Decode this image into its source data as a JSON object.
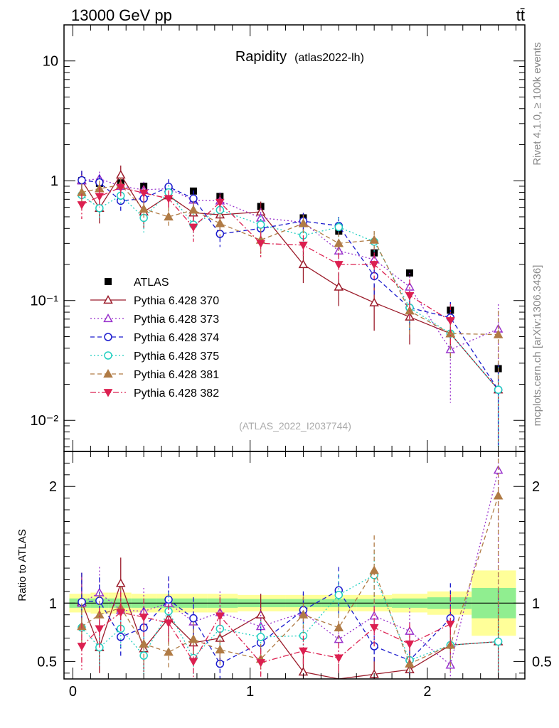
{
  "header": {
    "energy_label": "13000 GeV pp",
    "process_label": "tt̄"
  },
  "side_labels": {
    "rivet": "Rivet 4.1.0, ≥ 100k events",
    "mcplots": "mcplots.cern.ch [arXiv:1306.3436]"
  },
  "chart_data": [
    {
      "type": "scatter",
      "title": "Rapidity",
      "subtitle": "(atlas2022-lh)",
      "watermark": "(ATLAS_2022_I2037744)",
      "xlabel": "",
      "ylabel": "",
      "yscale": "log",
      "xlim": [
        -0.05,
        2.55
      ],
      "ylim": [
        0.0055,
        20
      ],
      "y_ticks": [
        {
          "v": 10,
          "label": "10"
        },
        {
          "v": 1,
          "label": "1"
        },
        {
          "v": 0.1,
          "label": "10⁻¹"
        },
        {
          "v": 0.01,
          "label": "10⁻²"
        }
      ],
      "x": [
        0.05,
        0.15,
        0.27,
        0.4,
        0.54,
        0.68,
        0.83,
        1.06,
        1.3,
        1.5,
        1.7,
        1.9,
        2.13,
        2.4
      ],
      "series": [
        {
          "name": "ATLAS",
          "color": "#000000",
          "marker": "square-filled",
          "dash": "none",
          "values": [
            1.0,
            0.95,
            0.96,
            0.9,
            0.86,
            0.82,
            0.74,
            0.61,
            0.49,
            0.38,
            0.25,
            0.17,
            0.083,
            0.027
          ]
        },
        {
          "name": "Pythia 6.428 370",
          "color": "#9b1b2a",
          "marker": "triangle-up-open",
          "dash": "solid",
          "values": [
            1.01,
            0.59,
            1.12,
            0.55,
            0.75,
            0.54,
            0.52,
            0.55,
            0.2,
            0.13,
            0.096,
            0.073,
            0.053,
            0.018
          ],
          "errors": [
            0.2,
            0.15,
            0.22,
            0.15,
            0.15,
            0.13,
            0.13,
            0.12,
            0.06,
            0.04,
            0.04,
            0.03,
            0.02,
            0.012
          ]
        },
        {
          "name": "Pythia 6.428 373",
          "color": "#9932cc",
          "marker": "triangle-up-open",
          "dash": "dotted",
          "values": [
            1.0,
            1.04,
            0.9,
            0.84,
            0.86,
            0.69,
            0.68,
            0.49,
            0.45,
            0.26,
            0.22,
            0.13,
            0.039,
            0.058
          ],
          "errors": [
            0.15,
            0.15,
            0.15,
            0.14,
            0.14,
            0.12,
            0.12,
            0.1,
            0.08,
            0.06,
            0.05,
            0.04,
            0.025,
            0.035
          ]
        },
        {
          "name": "Pythia 6.428 374",
          "color": "#1a1acd",
          "marker": "circle-open",
          "dash": "dashed",
          "values": [
            1.01,
            0.97,
            0.68,
            0.71,
            0.89,
            0.71,
            0.36,
            0.4,
            0.46,
            0.42,
            0.16,
            0.087,
            0.072,
            0.018
          ],
          "errors": [
            0.2,
            0.15,
            0.12,
            0.12,
            0.14,
            0.12,
            0.08,
            0.08,
            0.08,
            0.08,
            0.05,
            0.03,
            0.025,
            0.012
          ]
        },
        {
          "name": "Pythia 6.428 375",
          "color": "#20cfc0",
          "marker": "circle-open",
          "dash": "dotted",
          "values": [
            0.76,
            0.59,
            0.75,
            0.49,
            0.8,
            0.43,
            0.57,
            0.43,
            0.35,
            0.41,
            0.31,
            0.087,
            0.053,
            0.018
          ],
          "errors": [
            0.15,
            0.12,
            0.12,
            0.12,
            0.12,
            0.1,
            0.1,
            0.08,
            0.07,
            0.08,
            0.06,
            0.03,
            0.02,
            0.012
          ]
        },
        {
          "name": "Pythia 6.428 381",
          "color": "#b07b45",
          "marker": "triangle-up-filled",
          "dash": "dashed",
          "values": [
            0.8,
            0.86,
            0.92,
            0.58,
            0.5,
            0.57,
            0.44,
            0.32,
            0.44,
            0.3,
            0.32,
            0.082,
            0.053,
            0.052
          ],
          "errors": [
            0.15,
            0.14,
            0.14,
            0.12,
            0.1,
            0.11,
            0.1,
            0.08,
            0.08,
            0.07,
            0.06,
            0.03,
            0.02,
            0.03
          ]
        },
        {
          "name": "Pythia 6.428 382",
          "color": "#dc2050",
          "marker": "triangle-down-filled",
          "dash": "dashdot",
          "values": [
            0.63,
            0.74,
            0.88,
            0.79,
            0.71,
            0.41,
            0.66,
            0.3,
            0.29,
            0.2,
            0.2,
            0.11,
            0.068,
            null
          ],
          "errors": [
            0.15,
            0.14,
            0.14,
            0.12,
            0.12,
            0.1,
            0.11,
            0.07,
            0.06,
            0.05,
            0.05,
            0.04,
            0.025,
            null
          ]
        }
      ]
    },
    {
      "type": "scatter",
      "title": "",
      "xlabel": "",
      "ylabel": "Ratio to ATLAS",
      "yscale": "linear",
      "xlim": [
        -0.05,
        2.55
      ],
      "ylim": [
        0.35,
        2.3
      ],
      "y_ticks": [
        {
          "v": 2,
          "label": "2"
        },
        {
          "v": 1,
          "label": "1"
        },
        {
          "v": 0.5,
          "label": "0.5"
        }
      ],
      "x_ticks": [
        {
          "v": 0,
          "label": "0"
        },
        {
          "v": 1,
          "label": "1"
        },
        {
          "v": 2,
          "label": "2"
        }
      ],
      "x": [
        0.05,
        0.15,
        0.27,
        0.4,
        0.54,
        0.68,
        0.83,
        1.06,
        1.3,
        1.5,
        1.7,
        1.9,
        2.13,
        2.4
      ],
      "bins": [
        [
          -0.02,
          0.1
        ],
        [
          0.1,
          0.2
        ],
        [
          0.2,
          0.33
        ],
        [
          0.33,
          0.47
        ],
        [
          0.47,
          0.61
        ],
        [
          0.61,
          0.76
        ],
        [
          0.76,
          0.93
        ],
        [
          0.93,
          1.2
        ],
        [
          1.2,
          1.4
        ],
        [
          1.4,
          1.6
        ],
        [
          1.6,
          1.8
        ],
        [
          1.8,
          2.0
        ],
        [
          2.0,
          2.25
        ],
        [
          2.25,
          2.5
        ]
      ],
      "bands": {
        "inner": [
          [
            0.96,
            1.04
          ],
          [
            0.96,
            1.04
          ],
          [
            0.96,
            1.04
          ],
          [
            0.96,
            1.04
          ],
          [
            0.96,
            1.04
          ],
          [
            0.96,
            1.04
          ],
          [
            0.96,
            1.04
          ],
          [
            0.965,
            1.035
          ],
          [
            0.965,
            1.035
          ],
          [
            0.965,
            1.035
          ],
          [
            0.965,
            1.035
          ],
          [
            0.96,
            1.04
          ],
          [
            0.95,
            1.05
          ],
          [
            0.87,
            1.13
          ]
        ],
        "outer": [
          [
            0.92,
            1.08
          ],
          [
            0.91,
            1.09
          ],
          [
            0.91,
            1.09
          ],
          [
            0.92,
            1.08
          ],
          [
            0.92,
            1.08
          ],
          [
            0.92,
            1.08
          ],
          [
            0.92,
            1.08
          ],
          [
            0.93,
            1.07
          ],
          [
            0.93,
            1.07
          ],
          [
            0.93,
            1.07
          ],
          [
            0.93,
            1.07
          ],
          [
            0.92,
            1.08
          ],
          [
            0.9,
            1.1
          ],
          [
            0.72,
            1.28
          ]
        ]
      },
      "series": [
        {
          "name": "Pythia 6.428 370",
          "color": "#9b1b2a",
          "marker": "triangle-up-open",
          "dash": "solid",
          "values": [
            1.01,
            0.62,
            1.17,
            0.61,
            0.87,
            0.66,
            0.7,
            0.9,
            0.41,
            0.34,
            0.39,
            0.43,
            0.64,
            0.67
          ],
          "errors": [
            0.25,
            0.22,
            0.22,
            0.2,
            0.22,
            0.2,
            0.2,
            0.18,
            0.14,
            0.14,
            0.15,
            0.15,
            0.2,
            0.45
          ]
        },
        {
          "name": "Pythia 6.428 373",
          "color": "#9932cc",
          "marker": "triangle-up-open",
          "dash": "dotted",
          "values": [
            1.0,
            1.09,
            0.94,
            0.93,
            1.0,
            0.84,
            0.92,
            0.8,
            0.92,
            0.69,
            0.89,
            0.76,
            0.47,
            2.14
          ],
          "errors": [
            0.22,
            0.22,
            0.2,
            0.2,
            0.2,
            0.18,
            0.18,
            0.16,
            0.16,
            0.15,
            0.18,
            0.2,
            0.25,
            1.2
          ]
        },
        {
          "name": "Pythia 6.428 374",
          "color": "#1a1acd",
          "marker": "circle-open",
          "dash": "dashed",
          "values": [
            1.01,
            1.02,
            0.71,
            0.79,
            1.03,
            0.87,
            0.48,
            0.66,
            0.94,
            1.11,
            0.63,
            0.51,
            0.87,
            null
          ],
          "errors": [
            0.25,
            0.2,
            0.18,
            0.18,
            0.2,
            0.18,
            0.14,
            0.14,
            0.16,
            0.2,
            0.15,
            0.15,
            0.3,
            null
          ]
        },
        {
          "name": "Pythia 6.428 375",
          "color": "#20cfc0",
          "marker": "circle-open",
          "dash": "dotted",
          "values": [
            0.79,
            0.62,
            0.78,
            0.55,
            0.93,
            0.53,
            0.78,
            0.71,
            0.72,
            1.07,
            1.24,
            0.51,
            0.64,
            0.67
          ],
          "errors": [
            0.2,
            0.16,
            0.16,
            0.16,
            0.16,
            0.15,
            0.15,
            0.14,
            0.14,
            0.18,
            0.22,
            0.15,
            0.22,
            0.45
          ]
        },
        {
          "name": "Pythia 6.428 381",
          "color": "#b07b45",
          "marker": "triangle-up-filled",
          "dash": "dashed",
          "values": [
            0.8,
            0.9,
            0.96,
            0.65,
            0.58,
            0.69,
            0.6,
            0.52,
            0.9,
            0.79,
            1.28,
            0.48,
            0.64,
            1.92
          ],
          "errors": [
            0.2,
            0.18,
            0.18,
            0.16,
            0.15,
            0.15,
            0.15,
            0.13,
            0.16,
            0.18,
            0.3,
            0.15,
            0.22,
            1.1
          ]
        },
        {
          "name": "Pythia 6.428 382",
          "color": "#dc2050",
          "marker": "triangle-down-filled",
          "dash": "dashdot",
          "values": [
            0.63,
            0.78,
            0.92,
            0.88,
            0.83,
            0.5,
            0.89,
            0.49,
            0.59,
            0.53,
            0.79,
            0.65,
            0.82,
            null
          ],
          "errors": [
            0.2,
            0.18,
            0.18,
            0.16,
            0.16,
            0.14,
            0.16,
            0.12,
            0.13,
            0.13,
            0.18,
            0.18,
            0.25,
            null
          ]
        }
      ]
    }
  ]
}
